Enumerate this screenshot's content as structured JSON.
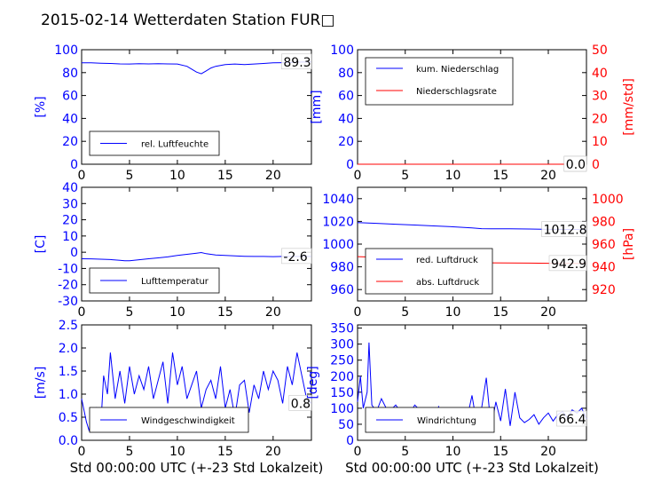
{
  "title": "2015-02-14 Wetterdaten Station FUR□",
  "colors": {
    "primary": "#0000ff",
    "secondary": "#ff0000",
    "text": "#000000"
  },
  "chart_data": [
    {
      "id": "humidity",
      "type": "line",
      "ylabel": "[%]",
      "ylim": [
        0,
        100
      ],
      "yticks": [
        0,
        20,
        40,
        60,
        80,
        100
      ],
      "xlim": [
        0,
        24
      ],
      "xticks": [
        0,
        5,
        10,
        15,
        20
      ],
      "xlabel": "",
      "series": [
        {
          "name": "rel. Luftfeuchte",
          "axis": "left",
          "color": "#0000ff",
          "x": [
            0,
            1,
            2,
            3,
            4,
            5,
            6,
            7,
            8,
            9,
            10,
            11,
            11.5,
            12,
            12.5,
            13,
            13.5,
            14,
            15,
            16,
            17,
            18,
            19,
            20,
            21,
            22,
            23,
            24
          ],
          "y": [
            88.5,
            88.5,
            88.2,
            88.0,
            87.6,
            87.5,
            87.8,
            87.6,
            87.8,
            87.6,
            87.5,
            85.5,
            83.0,
            80.5,
            79.0,
            81.5,
            84.0,
            85.5,
            87.0,
            87.5,
            87.0,
            87.5,
            88.0,
            88.5,
            88.7,
            89.0,
            89.2,
            89.3
          ]
        }
      ],
      "callouts": [
        {
          "axis": "left",
          "value": 89.3,
          "text": "89.3"
        }
      ]
    },
    {
      "id": "precipitation",
      "type": "line",
      "ylabel": "[mm]",
      "ylabel_right": "[mm/std]",
      "ylim": [
        0,
        100
      ],
      "yticks": [
        0,
        20,
        40,
        60,
        80,
        100
      ],
      "ylim_right": [
        0,
        50
      ],
      "yticks_right": [
        0,
        10,
        20,
        30,
        40,
        50
      ],
      "xlim": [
        0,
        24
      ],
      "xticks": [
        0,
        5,
        10,
        15,
        20
      ],
      "xlabel": "",
      "series": [
        {
          "name": "kum. Niederschlag",
          "axis": "left",
          "color": "#0000ff",
          "x": [
            0,
            24
          ],
          "y": [
            0,
            0
          ]
        },
        {
          "name": "Niederschlagsrate",
          "axis": "right",
          "color": "#ff0000",
          "x": [
            0,
            24
          ],
          "y": [
            0,
            0
          ]
        }
      ],
      "callouts": [
        {
          "axis": "left",
          "value": 0.0,
          "text": "0.0"
        },
        {
          "axis": "right",
          "value": 0.0,
          "text": "0.0"
        }
      ]
    },
    {
      "id": "temperature",
      "type": "line",
      "ylabel": "[C]",
      "ylim": [
        -30,
        40
      ],
      "yticks": [
        -30,
        -20,
        -10,
        0,
        10,
        20,
        30,
        40
      ],
      "xlim": [
        0,
        24
      ],
      "xticks": [
        0,
        5,
        10,
        15,
        20
      ],
      "xlabel": "",
      "series": [
        {
          "name": "Lufttemperatur",
          "axis": "left",
          "color": "#0000ff",
          "x": [
            0,
            1,
            2,
            3,
            4,
            4.5,
            5,
            6,
            7,
            8,
            9,
            10,
            11,
            12,
            12.5,
            13,
            14,
            15,
            16,
            17,
            18,
            19,
            20,
            21,
            22,
            23,
            24
          ],
          "y": [
            -4.0,
            -4.1,
            -4.3,
            -4.5,
            -5.0,
            -5.3,
            -5.2,
            -4.6,
            -4.0,
            -3.5,
            -2.9,
            -2.0,
            -1.3,
            -0.6,
            -0.2,
            -0.9,
            -1.7,
            -2.0,
            -2.3,
            -2.5,
            -2.6,
            -2.6,
            -2.7,
            -2.6,
            -2.6,
            -2.6,
            -2.6
          ]
        }
      ],
      "callouts": [
        {
          "axis": "left",
          "value": -2.6,
          "text": "-2.6"
        }
      ]
    },
    {
      "id": "pressure",
      "type": "line",
      "ylabel_right": "[hPa]",
      "ylim": [
        950,
        1050
      ],
      "yticks": [
        960,
        980,
        1000,
        1020,
        1040
      ],
      "ylim_right": [
        910,
        1010
      ],
      "yticks_right": [
        920,
        940,
        960,
        980,
        1000
      ],
      "xlim": [
        0,
        24
      ],
      "xticks": [
        0,
        5,
        10,
        15,
        20
      ],
      "xlabel": "",
      "series": [
        {
          "name": "red. Luftdruck",
          "axis": "left",
          "color": "#0000ff",
          "x": [
            0,
            2,
            4,
            6,
            8,
            10,
            12,
            13,
            14,
            16,
            18,
            20,
            22,
            24
          ],
          "y": [
            1019.0,
            1018.3,
            1017.5,
            1016.8,
            1016.0,
            1015.2,
            1014.2,
            1013.6,
            1013.5,
            1013.4,
            1013.3,
            1013.0,
            1012.9,
            1012.8
          ]
        }
      ],
      "series_right": [
        {
          "name": "abs. Luftdruck",
          "axis": "right",
          "color": "#ff0000",
          "x": [
            0,
            2,
            4,
            6,
            8,
            10,
            12,
            13,
            14,
            16,
            18,
            20,
            22,
            24
          ],
          "y": [
            949.0,
            948.4,
            947.6,
            946.9,
            946.1,
            945.3,
            944.3,
            943.7,
            943.5,
            943.4,
            943.3,
            943.1,
            943.0,
            942.9
          ]
        }
      ],
      "callouts": [
        {
          "axis": "left",
          "value": 1012.8,
          "text": "1012.8"
        },
        {
          "axis": "right",
          "value": 942.9,
          "text": "942.9"
        }
      ]
    },
    {
      "id": "windspeed",
      "type": "line",
      "ylabel": "[m/s]",
      "ylim": [
        0,
        2.5
      ],
      "yticks": [
        "0.0",
        "0.5",
        "1.0",
        "1.5",
        "2.0",
        "2.5"
      ],
      "xlim": [
        0,
        24
      ],
      "xticks": [
        0,
        5,
        10,
        15,
        20
      ],
      "xlabel": "Std 00:00:00 UTC (+-23 Std Lokalzeit)",
      "series": [
        {
          "name": "Windgeschwindigkeit",
          "axis": "left",
          "color": "#0000ff",
          "x": [
            0,
            0.5,
            0.8,
            1,
            1.5,
            2,
            2.3,
            2.7,
            3,
            3.5,
            4,
            4.5,
            5,
            5.5,
            6,
            6.5,
            7,
            7.5,
            8,
            8.5,
            9,
            9.5,
            10,
            10.5,
            11,
            11.5,
            12,
            12.5,
            13,
            13.5,
            14,
            14.5,
            15,
            15.5,
            16,
            16.5,
            17,
            17.5,
            18,
            18.5,
            19,
            19.5,
            20,
            20.5,
            21,
            21.5,
            22,
            22.5,
            23,
            23.5,
            24
          ],
          "y": [
            0.9,
            0.4,
            0.2,
            0.5,
            0.7,
            0.3,
            1.4,
            1.0,
            1.9,
            0.9,
            1.5,
            0.8,
            1.6,
            1.0,
            1.4,
            1.1,
            1.6,
            0.9,
            1.3,
            1.7,
            0.8,
            1.9,
            1.2,
            1.6,
            0.9,
            1.2,
            1.5,
            0.7,
            1.1,
            1.3,
            0.9,
            1.6,
            0.7,
            1.1,
            0.5,
            1.2,
            1.3,
            0.6,
            1.2,
            0.9,
            1.5,
            1.1,
            1.5,
            1.3,
            0.8,
            1.6,
            1.2,
            1.9,
            1.4,
            0.9,
            0.8
          ]
        }
      ],
      "callouts": [
        {
          "axis": "left",
          "value": 0.8,
          "text": "0.8"
        }
      ]
    },
    {
      "id": "winddirection",
      "type": "line",
      "ylabel": "[deg]",
      "ylim": [
        0,
        360
      ],
      "yticks": [
        0,
        50,
        100,
        150,
        200,
        250,
        300,
        350
      ],
      "xlim": [
        0,
        24
      ],
      "xticks": [
        0,
        5,
        10,
        15,
        20
      ],
      "xlabel": "Std 00:00:00 UTC (+-23 Std Lokalzeit)",
      "series": [
        {
          "name": "Windrichtung",
          "axis": "left",
          "color": "#0000ff",
          "x": [
            0,
            0.3,
            0.6,
            1,
            1.2,
            1.5,
            2,
            2.5,
            3,
            3.5,
            4,
            4.5,
            5,
            5.5,
            6,
            6.5,
            7,
            7.5,
            8,
            8.5,
            9,
            9.5,
            10,
            10.5,
            11,
            11.5,
            12,
            12.5,
            13,
            13.5,
            14,
            14.5,
            15,
            15.5,
            16,
            16.5,
            17,
            17.5,
            18,
            18.5,
            19,
            19.5,
            20,
            20.5,
            21,
            21.5,
            22,
            22.5,
            23,
            23.5,
            24
          ],
          "y": [
            120,
            200,
            100,
            150,
            305,
            110,
            90,
            130,
            100,
            95,
            110,
            90,
            100,
            85,
            110,
            95,
            80,
            100,
            70,
            105,
            60,
            95,
            80,
            100,
            55,
            70,
            140,
            50,
            100,
            195,
            40,
            120,
            60,
            160,
            45,
            150,
            70,
            55,
            65,
            80,
            50,
            70,
            85,
            60,
            80,
            90,
            70,
            95,
            85,
            100,
            66.4
          ]
        }
      ],
      "callouts": [
        {
          "axis": "left",
          "value": 66.4,
          "text": "66.4"
        }
      ]
    }
  ]
}
